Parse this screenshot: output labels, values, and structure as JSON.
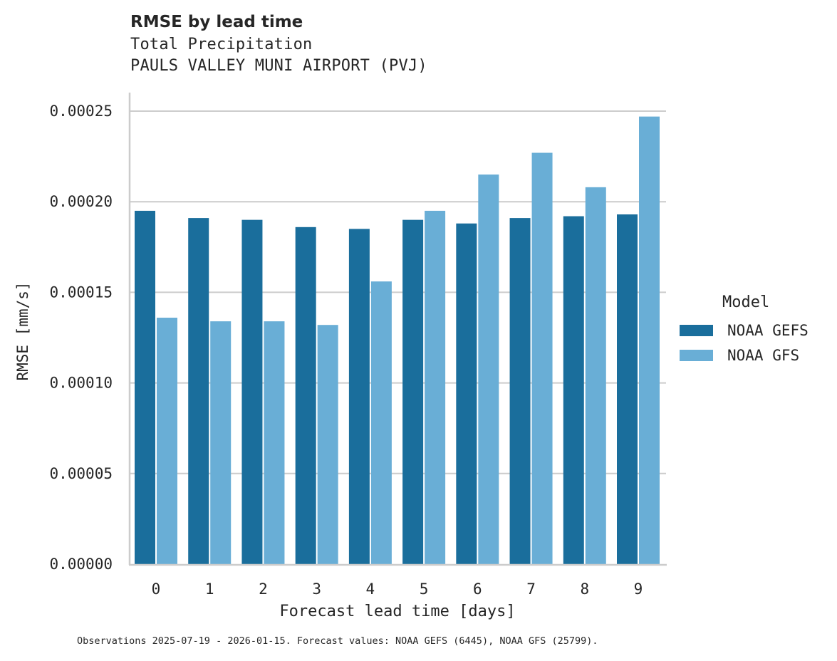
{
  "header": {
    "title": "RMSE by lead time",
    "subtitle_line1": "Total Precipitation",
    "subtitle_line2": "PAULS VALLEY MUNI AIRPORT (PVJ)"
  },
  "axes": {
    "xlabel": "Forecast lead time [days]",
    "ylabel": "RMSE [mm/s]"
  },
  "legend": {
    "title": "Model",
    "items": [
      {
        "label": "NOAA GEFS",
        "color": "#1a6e9c"
      },
      {
        "label": "NOAA GFS",
        "color": "#69aed6"
      }
    ]
  },
  "footnote": "Observations 2025-07-19 - 2026-01-15. Forecast values: NOAA GEFS (6445), NOAA GFS (25799).",
  "chart_data": {
    "type": "bar",
    "title": "RMSE by lead time",
    "subtitle": "Total Precipitation — PAULS VALLEY MUNI AIRPORT (PVJ)",
    "xlabel": "Forecast lead time [days]",
    "ylabel": "RMSE [mm/s]",
    "categories": [
      "0",
      "1",
      "2",
      "3",
      "4",
      "5",
      "6",
      "7",
      "8",
      "9"
    ],
    "series": [
      {
        "name": "NOAA GEFS",
        "color": "#1a6e9c",
        "values": [
          0.000195,
          0.000191,
          0.00019,
          0.000186,
          0.000185,
          0.00019,
          0.000188,
          0.000191,
          0.000192,
          0.000193
        ]
      },
      {
        "name": "NOAA GFS",
        "color": "#69aed6",
        "values": [
          0.000136,
          0.000134,
          0.000134,
          0.000132,
          0.000156,
          0.000195,
          0.000215,
          0.000227,
          0.000208,
          0.000247
        ]
      }
    ],
    "yticks": [
      "0.00000",
      "0.00005",
      "0.00010",
      "0.00015",
      "0.00020",
      "0.00025"
    ],
    "ytick_values": [
      0,
      5e-05,
      0.0001,
      0.00015,
      0.0002,
      0.00025
    ],
    "ylim": [
      0,
      0.00026
    ],
    "grid": "horizontal",
    "legend_position": "right",
    "legend_title": "Model"
  }
}
